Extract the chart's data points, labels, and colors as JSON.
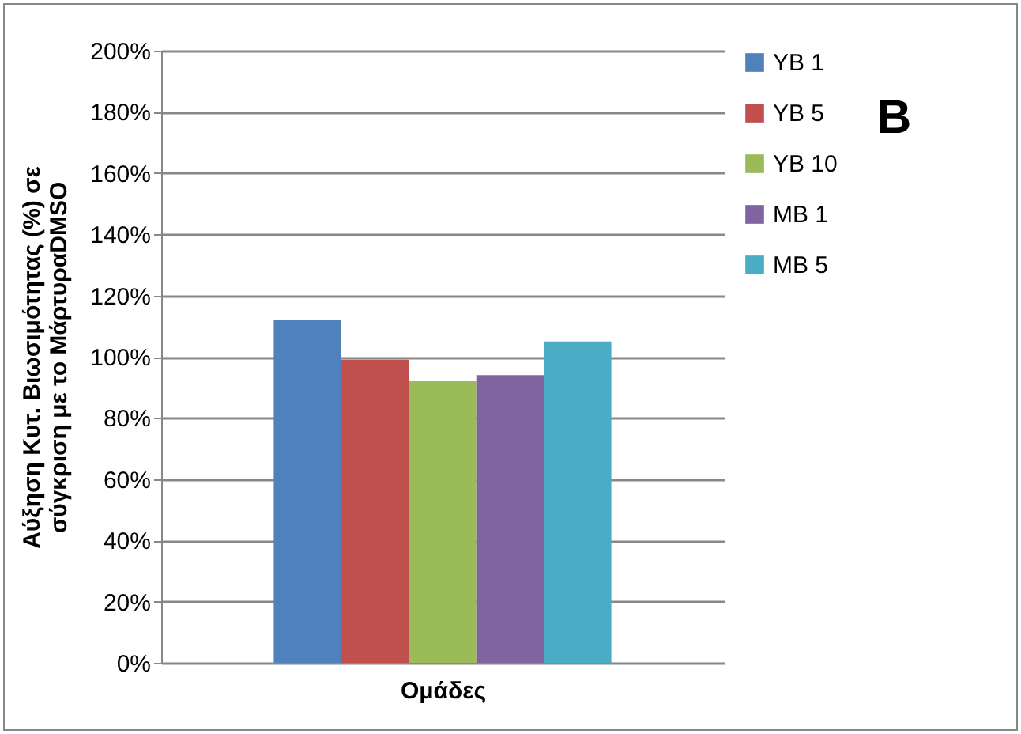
{
  "chart_data": {
    "type": "bar",
    "xlabel": "Ομάδες",
    "ylabel": "Αύξηση Κυτ. Βιωσιμότητας (%) σε\nσύγκριση με το ΜάρτυραDMSO",
    "categories": [
      null
    ],
    "series": [
      {
        "name": "YB 1",
        "color": "#4f81bd",
        "values": [
          112
        ]
      },
      {
        "name": "YB 5",
        "color": "#c0504d",
        "values": [
          99
        ]
      },
      {
        "name": "YB 10",
        "color": "#9bbb59",
        "values": [
          92
        ]
      },
      {
        "name": "MB 1",
        "color": "#8064a2",
        "values": [
          94
        ]
      },
      {
        "name": "MB 5",
        "color": "#4bacc6",
        "values": [
          105
        ]
      }
    ],
    "ylim": [
      0,
      200
    ],
    "yticks": [
      {
        "value": 0,
        "label": "0%"
      },
      {
        "value": 20,
        "label": "20%"
      },
      {
        "value": 40,
        "label": "40%"
      },
      {
        "value": 60,
        "label": "60%"
      },
      {
        "value": 80,
        "label": "80%"
      },
      {
        "value": 100,
        "label": "100%"
      },
      {
        "value": 120,
        "label": "120%"
      },
      {
        "value": 140,
        "label": "140%"
      },
      {
        "value": 160,
        "label": "160%"
      },
      {
        "value": 180,
        "label": "180%"
      },
      {
        "value": 200,
        "label": "200%"
      }
    ],
    "grid": "y",
    "legend": "right",
    "annotations": [
      "B"
    ]
  }
}
